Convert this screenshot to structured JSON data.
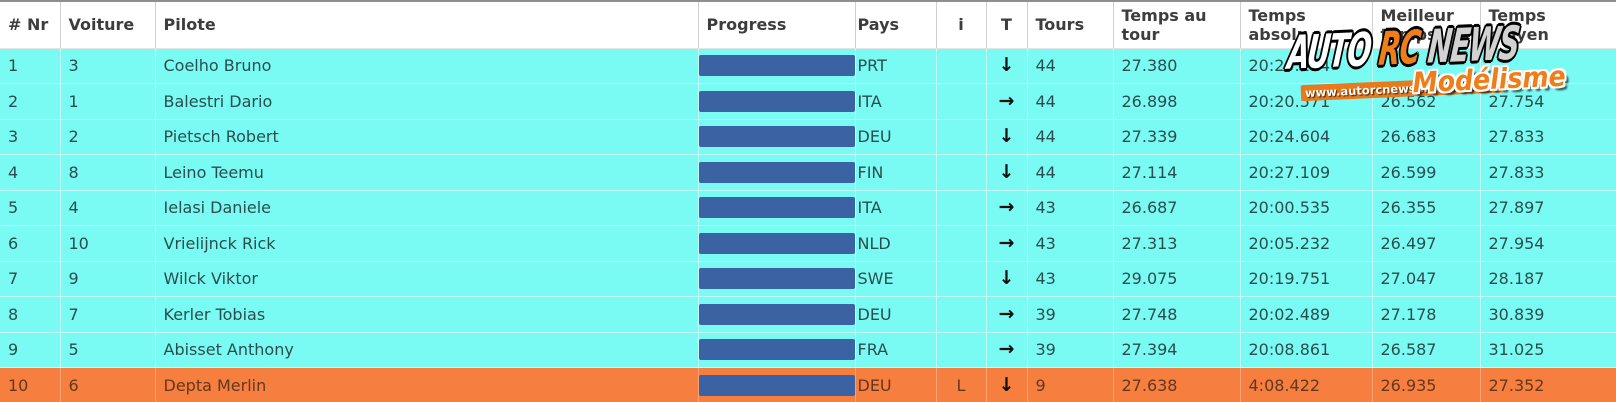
{
  "table": {
    "columns": [
      {
        "key": "pos",
        "label": "# Nr"
      },
      {
        "key": "voiture",
        "label": "Voiture"
      },
      {
        "key": "pilote",
        "label": "Pilote"
      },
      {
        "key": "progress",
        "label": "Progress"
      },
      {
        "key": "pays",
        "label": "Pays"
      },
      {
        "key": "i",
        "label": "i"
      },
      {
        "key": "t",
        "label": "T"
      },
      {
        "key": "tours",
        "label": "Tours"
      },
      {
        "key": "temps_au_tour",
        "label": "Temps au tour"
      },
      {
        "key": "temps_absolu",
        "label": "Temps absolu"
      },
      {
        "key": "meilleur_temps",
        "label": "Meilleur temps"
      },
      {
        "key": "temps_moyen",
        "label": "Temps moyen"
      }
    ],
    "rows": [
      {
        "pos": "1",
        "voiture": "3",
        "pilote": "Coelho Bruno",
        "progress_pct": 100,
        "pays": "PRT",
        "i": "",
        "t_dir": "down",
        "tours": "44",
        "temps_au_tour": "27.380",
        "temps_absolu": "20:20.114",
        "meilleur_temps": "",
        "temps_moyen": "",
        "highlight": false
      },
      {
        "pos": "2",
        "voiture": "1",
        "pilote": "Balestri Dario",
        "progress_pct": 100,
        "pays": "ITA",
        "i": "",
        "t_dir": "right",
        "tours": "44",
        "temps_au_tour": "26.898",
        "temps_absolu": "20:20.571",
        "meilleur_temps": "26.562",
        "temps_moyen": "27.754",
        "highlight": false
      },
      {
        "pos": "3",
        "voiture": "2",
        "pilote": "Pietsch Robert",
        "progress_pct": 100,
        "pays": "DEU",
        "i": "",
        "t_dir": "down",
        "tours": "44",
        "temps_au_tour": "27.339",
        "temps_absolu": "20:24.604",
        "meilleur_temps": "26.683",
        "temps_moyen": "27.833",
        "highlight": false
      },
      {
        "pos": "4",
        "voiture": "8",
        "pilote": "Leino Teemu",
        "progress_pct": 100,
        "pays": "FIN",
        "i": "",
        "t_dir": "down",
        "tours": "44",
        "temps_au_tour": "27.114",
        "temps_absolu": "20:27.109",
        "meilleur_temps": "26.599",
        "temps_moyen": "27.833",
        "highlight": false
      },
      {
        "pos": "5",
        "voiture": "4",
        "pilote": "Ielasi Daniele",
        "progress_pct": 100,
        "pays": "ITA",
        "i": "",
        "t_dir": "right",
        "tours": "43",
        "temps_au_tour": "26.687",
        "temps_absolu": "20:00.535",
        "meilleur_temps": "26.355",
        "temps_moyen": "27.897",
        "highlight": false
      },
      {
        "pos": "6",
        "voiture": "10",
        "pilote": "Vrielijnck Rick",
        "progress_pct": 100,
        "pays": "NLD",
        "i": "",
        "t_dir": "right",
        "tours": "43",
        "temps_au_tour": "27.313",
        "temps_absolu": "20:05.232",
        "meilleur_temps": "26.497",
        "temps_moyen": "27.954",
        "highlight": false
      },
      {
        "pos": "7",
        "voiture": "9",
        "pilote": "Wilck Viktor",
        "progress_pct": 100,
        "pays": "SWE",
        "i": "",
        "t_dir": "down",
        "tours": "43",
        "temps_au_tour": "29.075",
        "temps_absolu": "20:19.751",
        "meilleur_temps": "27.047",
        "temps_moyen": "28.187",
        "highlight": false
      },
      {
        "pos": "8",
        "voiture": "7",
        "pilote": "Kerler Tobias",
        "progress_pct": 100,
        "pays": "DEU",
        "i": "",
        "t_dir": "right",
        "tours": "39",
        "temps_au_tour": "27.748",
        "temps_absolu": "20:02.489",
        "meilleur_temps": "27.178",
        "temps_moyen": "30.839",
        "highlight": false
      },
      {
        "pos": "9",
        "voiture": "5",
        "pilote": "Abisset Anthony",
        "progress_pct": 100,
        "pays": "FRA",
        "i": "",
        "t_dir": "right",
        "tours": "39",
        "temps_au_tour": "27.394",
        "temps_absolu": "20:08.861",
        "meilleur_temps": "26.587",
        "temps_moyen": "31.025",
        "highlight": false
      },
      {
        "pos": "10",
        "voiture": "6",
        "pilote": "Depta Merlin",
        "progress_pct": 100,
        "pays": "DEU",
        "i": "L",
        "t_dir": "down",
        "tours": "9",
        "temps_au_tour": "27.638",
        "temps_absolu": "4:08.422",
        "meilleur_temps": "26.935",
        "temps_moyen": "27.352",
        "highlight": true
      }
    ]
  },
  "icons": {
    "arrow_down": "↓",
    "arrow_right": "→"
  },
  "watermark": {
    "auto": "AUTO",
    "rc": "RC",
    "news": "NEWS",
    "url": "www.autorcnewsmodelisme.fr",
    "modelisme": "Modélisme"
  },
  "colors": {
    "row_cyan": "#79fbf3",
    "row_highlight_orange": "#f67e3f",
    "progress_bar_blue": "#3b63a4",
    "logo_orange": "#ef7d1a",
    "header_text": "#3d3d3d",
    "body_text": "#2b4d4f"
  }
}
